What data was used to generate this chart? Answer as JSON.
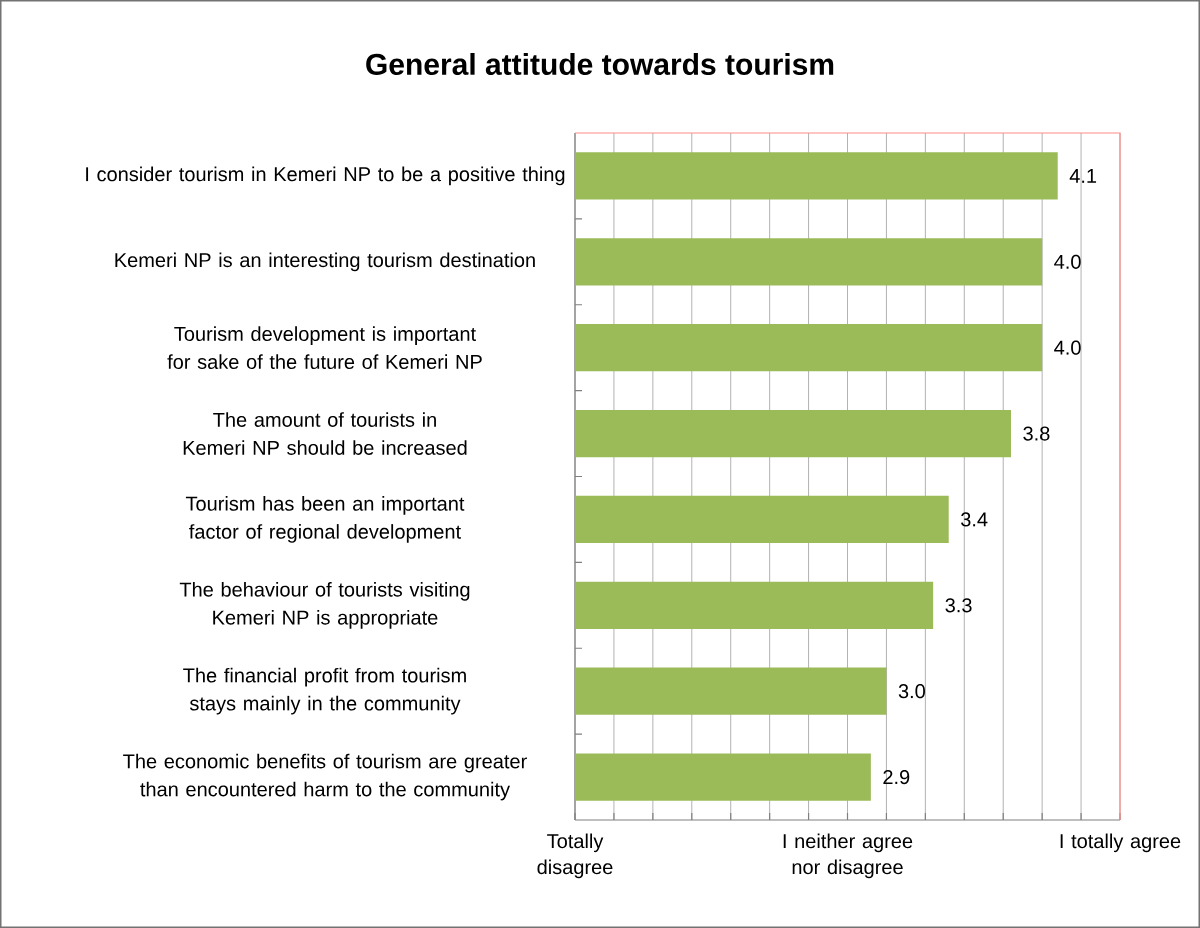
{
  "chart_data": {
    "type": "bar",
    "orientation": "horizontal",
    "title": "General attitude towards tourism",
    "categories": [
      "I consider tourism in Kemeri NP to be a positive thing",
      "Kemeri NP is an interesting  tourism destination",
      "Tourism development is important for sake of the future of Kemeri NP",
      "The amount of tourists in Kemeri NP should be increased",
      "Tourism has been an important factor of  regional development",
      "The behaviour of tourists visiting Kemeri NP is appropriate",
      "The financial profit from tourism stays  mainly in the community",
      "The economic benefits of tourism are  greater than encountered harm to the  community"
    ],
    "values": [
      4.1,
      4.0,
      4.0,
      3.8,
      3.4,
      3.3,
      3.0,
      2.9
    ],
    "value_labels": [
      "4.1",
      "4.0",
      "4.0",
      "3.8",
      "3.4",
      "3.3",
      "3.0",
      "2.9"
    ],
    "color": "#9bbb59",
    "xlim": [
      1,
      4.5
    ],
    "xticks": [
      {
        "value": 1,
        "label": null
      },
      {
        "value": 1.5,
        "label": null
      },
      {
        "value": 2,
        "label": null
      },
      {
        "value": 2.5,
        "label": null
      },
      {
        "value": 3,
        "label": null
      },
      {
        "value": 3.5,
        "label": null
      },
      {
        "value": 4,
        "label": null
      },
      {
        "value": 4.5,
        "label": null
      }
    ],
    "annotations": [
      "Totally disagree",
      "I neither agree nor disagree",
      "I totally agree"
    ],
    "grid": "x"
  }
}
